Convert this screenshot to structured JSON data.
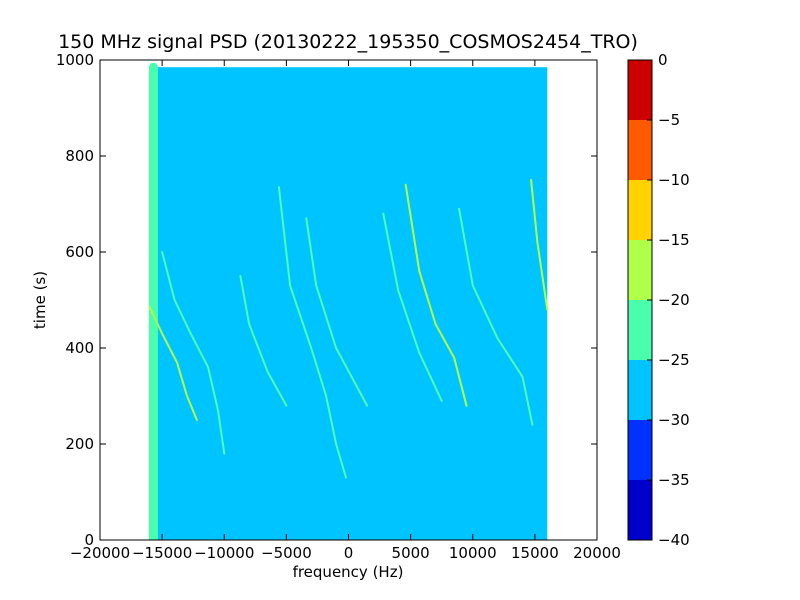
{
  "chart_data": {
    "type": "heatmap",
    "title": "150 MHz signal PSD (20130222_195350_COSMOS2454_TRO)",
    "xlabel": "frequency (Hz)",
    "ylabel": "time (s)",
    "xlim": [
      -20000,
      20000
    ],
    "ylim": [
      0,
      1000
    ],
    "x_ticks": [
      -20000,
      -15000,
      -10000,
      -5000,
      0,
      5000,
      10000,
      15000,
      20000
    ],
    "y_ticks": [
      0,
      200,
      400,
      600,
      800,
      1000
    ],
    "data_extent": {
      "x": [
        -16000,
        16000
      ],
      "y": [
        0,
        985
      ]
    },
    "background_level": -27.5,
    "colorbar": {
      "levels": [
        -40,
        -35,
        -30,
        -25,
        -20,
        -15,
        -10,
        -5,
        0
      ],
      "tick_labels": [
        "−40",
        "−35",
        "−30",
        "−25",
        "−20",
        "−15",
        "−10",
        "−5",
        "0"
      ],
      "colors": [
        "#0000cd",
        "#0031ff",
        "#00c4ff",
        "#49ffad",
        "#b0ff49",
        "#ffd200",
        "#ff5a00",
        "#cd0000"
      ]
    },
    "features": [
      {
        "name": "band-left-edge",
        "level": -22.5,
        "points": [
          [
            -15700,
            0
          ],
          [
            -15700,
            985
          ]
        ]
      },
      {
        "name": "trace-1",
        "level": -17.5,
        "points": [
          [
            -16000,
            485
          ],
          [
            -15000,
            430
          ],
          [
            -13800,
            370
          ],
          [
            -13000,
            300
          ],
          [
            -12200,
            250
          ]
        ]
      },
      {
        "name": "trace-2",
        "level": -22.5,
        "points": [
          [
            -15000,
            600
          ],
          [
            -14000,
            500
          ],
          [
            -12700,
            430
          ],
          [
            -11300,
            360
          ],
          [
            -10500,
            270
          ],
          [
            -10000,
            180
          ]
        ]
      },
      {
        "name": "trace-3",
        "level": -22.5,
        "points": [
          [
            -8700,
            550
          ],
          [
            -8000,
            450
          ],
          [
            -6500,
            350
          ],
          [
            -5000,
            280
          ]
        ]
      },
      {
        "name": "trace-4",
        "level": -22.5,
        "points": [
          [
            -5600,
            735
          ],
          [
            -4700,
            530
          ],
          [
            -3000,
            400
          ],
          [
            -1800,
            300
          ],
          [
            -1000,
            200
          ],
          [
            -200,
            130
          ]
        ]
      },
      {
        "name": "trace-5",
        "level": -22.5,
        "points": [
          [
            -3400,
            670
          ],
          [
            -2600,
            530
          ],
          [
            -1000,
            400
          ],
          [
            1500,
            280
          ]
        ]
      },
      {
        "name": "trace-6",
        "level": -22.5,
        "points": [
          [
            2800,
            680
          ],
          [
            4000,
            520
          ],
          [
            5700,
            390
          ],
          [
            7500,
            290
          ]
        ]
      },
      {
        "name": "trace-7",
        "level": -20,
        "points": [
          [
            4600,
            740
          ],
          [
            5700,
            560
          ],
          [
            7000,
            450
          ],
          [
            8500,
            380
          ],
          [
            9500,
            280
          ]
        ]
      },
      {
        "name": "trace-8",
        "level": -22.5,
        "points": [
          [
            8900,
            690
          ],
          [
            10000,
            530
          ],
          [
            12000,
            420
          ],
          [
            14000,
            340
          ],
          [
            14800,
            240
          ]
        ]
      },
      {
        "name": "trace-9",
        "level": -17.5,
        "points": [
          [
            14700,
            750
          ],
          [
            15200,
            620
          ],
          [
            16000,
            480
          ]
        ]
      }
    ]
  }
}
